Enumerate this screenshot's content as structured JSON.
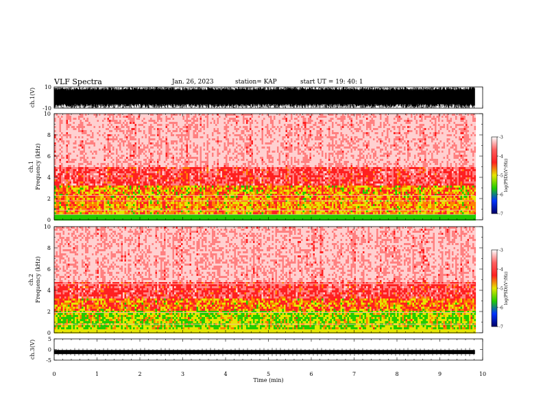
{
  "header": {
    "title": "VLF Spectra",
    "date": "Jan. 26, 2023",
    "station": "station= KAP",
    "start": "start  UT =   19: 40: 1"
  },
  "chart_data": [
    {
      "type": "line",
      "ylabel": "ch.1(V)",
      "ylim": [
        -10,
        10
      ],
      "y_ticks": [
        "10",
        "-10"
      ],
      "xlim": [
        0,
        10
      ],
      "description_values": "dense waveform spanning full range"
    },
    {
      "type": "heatmap",
      "ylabel": "ch.1\nFrequency (kHz)",
      "ylabel_top": "ch.1",
      "ylabel_bottom": "Frequency  (kHz)",
      "y_ticks": [
        "0",
        "2",
        "4",
        "6",
        "8",
        "10"
      ],
      "ylim": [
        0,
        10
      ],
      "xlim": [
        0,
        10
      ],
      "colorbar": {
        "label": "log(PSD)(V²/Hz)",
        "ticks": [
          "-3",
          "-4",
          "-5",
          "-6",
          "-7"
        ],
        "range": [
          -7,
          -3
        ]
      }
    },
    {
      "type": "heatmap",
      "ylabel_top": "ch.2",
      "ylabel_bottom": "Frequency  (kHz)",
      "y_ticks": [
        "0",
        "2",
        "4",
        "6",
        "8",
        "10"
      ],
      "ylim": [
        0,
        10
      ],
      "xlim": [
        0,
        10
      ],
      "colorbar": {
        "label": "log(PSD)(V²/Hz)",
        "ticks": [
          "-3",
          "-4",
          "-5",
          "-6",
          "-7"
        ],
        "range": [
          -7,
          -3
        ]
      }
    },
    {
      "type": "line",
      "ylabel": "ch.3(V)",
      "ylim": [
        -5,
        5
      ],
      "y_ticks": [
        "5",
        "0",
        "-5"
      ],
      "xlim": [
        0,
        10
      ],
      "baseline": -1.2
    }
  ],
  "xaxis": {
    "label": "Time  (min)",
    "ticks": [
      "0",
      "1",
      "2",
      "3",
      "4",
      "5",
      "6",
      "7",
      "8",
      "9",
      "10"
    ]
  },
  "colors": {
    "red": "#ff2020",
    "yellow": "#e6e600",
    "green": "#22cc00",
    "blue": "#0033ff",
    "navy": "#000066"
  }
}
